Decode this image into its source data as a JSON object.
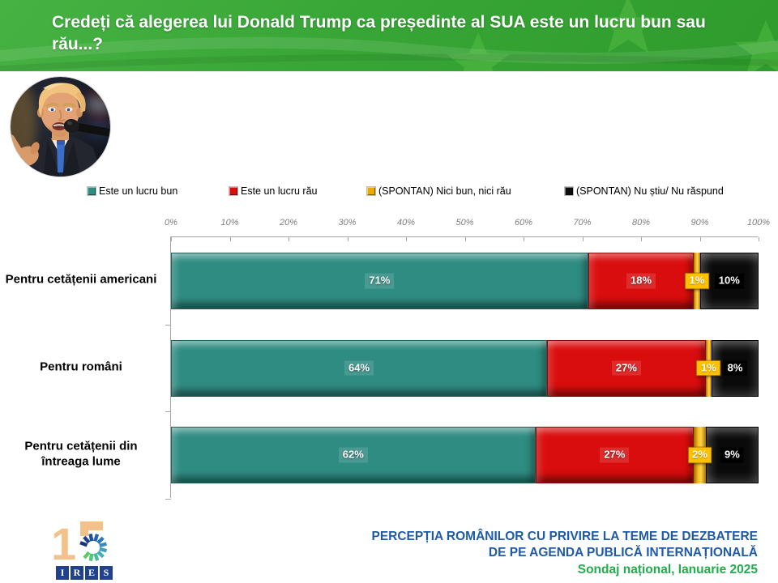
{
  "header": {
    "title": "Credeți că alegerea lui Donald Trump ca președinte al SUA este un lucru bun sau rău...?"
  },
  "portrait": {
    "icon": "donald-trump-photo"
  },
  "legend": [
    {
      "label": "Este un lucru bun"
    },
    {
      "label": "Este un lucru rău"
    },
    {
      "label": "(SPONTAN) Nici bun, nici rău"
    },
    {
      "label": "(SPONTAN) Nu știu/ Nu răspund"
    }
  ],
  "chart_data": {
    "type": "bar",
    "orientation": "horizontal",
    "stacked": true,
    "categories": [
      "Pentru cetățenii americani",
      "Pentru români",
      "Pentru cetățenii din întreaga lume"
    ],
    "series": [
      {
        "name": "Este un lucru bun",
        "color": "#2F8C82",
        "values": [
          71,
          64,
          62
        ]
      },
      {
        "name": "Este un lucru rău",
        "color": "#D90D0D",
        "values": [
          18,
          27,
          27
        ]
      },
      {
        "name": "(SPONTAN) Nici bun, nici rău",
        "color": "#E9AB00",
        "values": [
          1,
          1,
          2
        ]
      },
      {
        "name": "(SPONTAN) Nu știu/ Nu răspund",
        "color": "#0D0D0D",
        "values": [
          10,
          8,
          9
        ]
      }
    ],
    "xlim": [
      0,
      100
    ],
    "x_ticks": [
      "0%",
      "10%",
      "20%",
      "30%",
      "40%",
      "50%",
      "60%",
      "70%",
      "80%",
      "90%",
      "100%"
    ],
    "value_suffix": "%",
    "legend_position": "top",
    "grid": false
  },
  "footer": {
    "logo_number": "15",
    "logo_letters": [
      "I",
      "R",
      "E",
      "S"
    ],
    "line1": "PERCEPȚIA ROMÂNILOR CU PRIVIRE LA TEME DE DEZBATERE",
    "line2": "DE PE AGENDA PUBLICĂ INTERNAȚIONALĂ",
    "line3": "Sondaj național, Ianuarie 2025"
  },
  "colors": {
    "header_green": "#38A636",
    "bar_teal": "#2F8C82",
    "bar_red": "#D90D0D",
    "bar_gold_chip": "#FFC000",
    "bar_black": "#0D0D0D",
    "footer_blue": "#1F5AA8",
    "footer_green": "#21AD4B"
  }
}
